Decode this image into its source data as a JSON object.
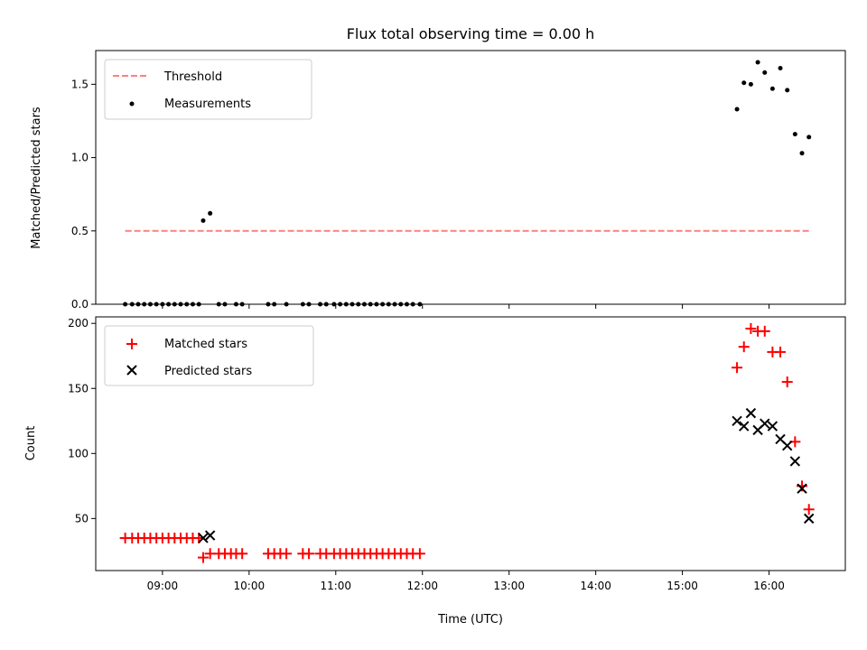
{
  "chart_data": [
    {
      "type": "scatter",
      "title": "Flux total observing time = 0.00 h",
      "ylabel": "Matched/Predicted stars",
      "xlabel": "",
      "xlim_hours": [
        8.23,
        16.88
      ],
      "ylim": [
        0,
        1.73
      ],
      "yticks": [
        0.0,
        0.5,
        1.0,
        1.5
      ],
      "ytick_labels": [
        "0.0",
        "0.5",
        "1.0",
        "1.5"
      ],
      "grid": false,
      "legend": {
        "placement": "top-left",
        "entries": [
          "Threshold",
          "Measurements"
        ]
      },
      "threshold": {
        "name": "Threshold",
        "y": 0.5,
        "x_start": 8.57,
        "x_end": 16.47,
        "color": "#ff7f7f"
      },
      "series": [
        {
          "name": "Measurements",
          "color": "#000000",
          "points": [
            [
              8.57,
              0
            ],
            [
              8.65,
              0
            ],
            [
              8.72,
              0
            ],
            [
              8.79,
              0
            ],
            [
              8.86,
              0
            ],
            [
              8.93,
              0
            ],
            [
              9.0,
              0
            ],
            [
              9.07,
              0
            ],
            [
              9.14,
              0
            ],
            [
              9.21,
              0
            ],
            [
              9.28,
              0
            ],
            [
              9.35,
              0
            ],
            [
              9.42,
              0
            ],
            [
              9.47,
              0.57
            ],
            [
              9.55,
              0.62
            ],
            [
              9.65,
              0
            ],
            [
              9.72,
              0
            ],
            [
              9.85,
              0
            ],
            [
              9.92,
              0
            ],
            [
              10.22,
              0
            ],
            [
              10.29,
              0
            ],
            [
              10.43,
              0
            ],
            [
              10.62,
              0
            ],
            [
              10.69,
              0
            ],
            [
              10.82,
              0
            ],
            [
              10.89,
              0
            ],
            [
              10.98,
              0
            ],
            [
              11.05,
              0
            ],
            [
              11.12,
              0
            ],
            [
              11.19,
              0
            ],
            [
              11.26,
              0
            ],
            [
              11.33,
              0
            ],
            [
              11.4,
              0
            ],
            [
              11.47,
              0
            ],
            [
              11.54,
              0
            ],
            [
              11.61,
              0
            ],
            [
              11.68,
              0
            ],
            [
              11.75,
              0
            ],
            [
              11.82,
              0
            ],
            [
              11.89,
              0
            ],
            [
              11.97,
              0
            ],
            [
              15.63,
              1.33
            ],
            [
              15.71,
              1.51
            ],
            [
              15.79,
              1.5
            ],
            [
              15.87,
              1.65
            ],
            [
              15.95,
              1.58
            ],
            [
              16.04,
              1.47
            ],
            [
              16.13,
              1.61
            ],
            [
              16.21,
              1.46
            ],
            [
              16.3,
              1.16
            ],
            [
              16.38,
              1.03
            ],
            [
              16.46,
              1.14
            ]
          ]
        }
      ]
    },
    {
      "type": "scatter",
      "title": "",
      "ylabel": "Count",
      "xlabel": "Time (UTC)",
      "xlim_hours": [
        8.23,
        16.88
      ],
      "ylim": [
        10,
        205
      ],
      "yticks": [
        50,
        100,
        150,
        200
      ],
      "ytick_labels": [
        "50",
        "100",
        "150",
        "200"
      ],
      "xticks_hours": [
        9,
        10,
        11,
        12,
        13,
        14,
        15,
        16
      ],
      "xtick_labels": [
        "09:00",
        "10:00",
        "11:00",
        "12:00",
        "13:00",
        "14:00",
        "15:00",
        "16:00"
      ],
      "grid": false,
      "legend": {
        "placement": "top-left",
        "entries": [
          "Matched stars",
          "Predicted stars"
        ]
      },
      "series": [
        {
          "name": "Matched stars",
          "marker": "plus",
          "color": "#ff0000",
          "points": [
            [
              8.57,
              35
            ],
            [
              8.65,
              35
            ],
            [
              8.72,
              35
            ],
            [
              8.79,
              35
            ],
            [
              8.86,
              35
            ],
            [
              8.93,
              35
            ],
            [
              9.0,
              35
            ],
            [
              9.07,
              35
            ],
            [
              9.14,
              35
            ],
            [
              9.21,
              35
            ],
            [
              9.28,
              35
            ],
            [
              9.35,
              35
            ],
            [
              9.42,
              35
            ],
            [
              9.47,
              20
            ],
            [
              9.55,
              23
            ],
            [
              9.65,
              23
            ],
            [
              9.72,
              23
            ],
            [
              9.79,
              23
            ],
            [
              9.85,
              23
            ],
            [
              9.92,
              23
            ],
            [
              10.22,
              23
            ],
            [
              10.29,
              23
            ],
            [
              10.36,
              23
            ],
            [
              10.43,
              23
            ],
            [
              10.62,
              23
            ],
            [
              10.69,
              23
            ],
            [
              10.82,
              23
            ],
            [
              10.89,
              23
            ],
            [
              10.98,
              23
            ],
            [
              11.05,
              23
            ],
            [
              11.12,
              23
            ],
            [
              11.19,
              23
            ],
            [
              11.26,
              23
            ],
            [
              11.33,
              23
            ],
            [
              11.4,
              23
            ],
            [
              11.47,
              23
            ],
            [
              11.54,
              23
            ],
            [
              11.61,
              23
            ],
            [
              11.68,
              23
            ],
            [
              11.75,
              23
            ],
            [
              11.82,
              23
            ],
            [
              11.89,
              23
            ],
            [
              11.97,
              23
            ],
            [
              15.63,
              166
            ],
            [
              15.71,
              182
            ],
            [
              15.79,
              196
            ],
            [
              15.87,
              194
            ],
            [
              15.95,
              194
            ],
            [
              16.04,
              178
            ],
            [
              16.13,
              178
            ],
            [
              16.21,
              155
            ],
            [
              16.3,
              109
            ],
            [
              16.38,
              75
            ],
            [
              16.46,
              57
            ]
          ]
        },
        {
          "name": "Predicted stars",
          "marker": "x",
          "color": "#000000",
          "points": [
            [
              9.47,
              35
            ],
            [
              9.55,
              37
            ],
            [
              15.63,
              125
            ],
            [
              15.71,
              121
            ],
            [
              15.79,
              131
            ],
            [
              15.87,
              118
            ],
            [
              15.95,
              123
            ],
            [
              16.04,
              121
            ],
            [
              16.13,
              111
            ],
            [
              16.21,
              106
            ],
            [
              16.3,
              94
            ],
            [
              16.38,
              73
            ],
            [
              16.46,
              50
            ]
          ]
        }
      ]
    }
  ]
}
